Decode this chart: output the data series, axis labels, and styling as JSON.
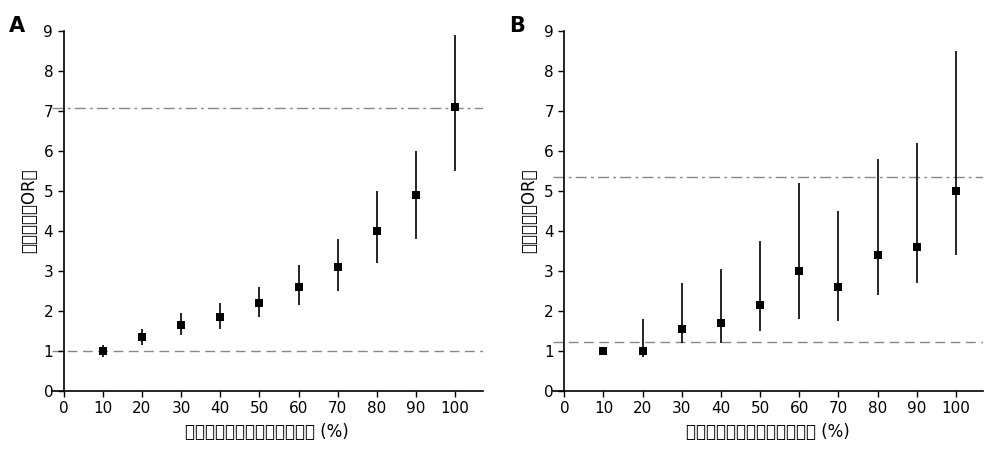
{
  "panel_A": {
    "label": "A",
    "ylabel": "发现人群的OR値",
    "xlabel": "多基因遗传风险得分百分位数 (%)",
    "x": [
      10,
      20,
      30,
      40,
      50,
      60,
      70,
      80,
      90,
      100
    ],
    "y": [
      1.0,
      1.35,
      1.65,
      1.85,
      2.2,
      2.6,
      3.1,
      4.0,
      4.9,
      7.1
    ],
    "yerr_low": [
      0.15,
      0.2,
      0.25,
      0.3,
      0.35,
      0.45,
      0.6,
      0.8,
      1.1,
      1.6
    ],
    "yerr_high": [
      0.15,
      0.2,
      0.3,
      0.35,
      0.4,
      0.55,
      0.7,
      1.0,
      1.1,
      1.8
    ],
    "hline1_y": 1.0,
    "hline2_y": 7.07,
    "ylim": [
      0,
      9
    ],
    "yticks": [
      0,
      1,
      2,
      3,
      4,
      5,
      6,
      7,
      8,
      9
    ],
    "xticks": [
      0,
      10,
      20,
      30,
      40,
      50,
      60,
      70,
      80,
      90,
      100
    ]
  },
  "panel_B": {
    "label": "B",
    "ylabel": "验证人群的OR値",
    "xlabel": "多基因遗传风险得分百分位数 (%)",
    "x": [
      10,
      20,
      30,
      40,
      50,
      60,
      70,
      80,
      90,
      100
    ],
    "y": [
      1.0,
      1.0,
      1.55,
      1.7,
      2.15,
      3.0,
      2.6,
      3.4,
      3.6,
      5.0
    ],
    "yerr_low": [
      0.0,
      0.15,
      0.35,
      0.5,
      0.65,
      1.2,
      0.85,
      1.0,
      0.9,
      1.6
    ],
    "yerr_high": [
      0.0,
      0.8,
      1.15,
      1.35,
      1.6,
      2.2,
      1.9,
      2.4,
      2.6,
      3.5
    ],
    "hline1_y": 1.22,
    "hline2_y": 5.35,
    "ylim": [
      0,
      9
    ],
    "yticks": [
      0,
      1,
      2,
      3,
      4,
      5,
      6,
      7,
      8,
      9
    ],
    "xticks": [
      0,
      10,
      20,
      30,
      40,
      50,
      60,
      70,
      80,
      90,
      100
    ]
  },
  "marker_color": "#000000",
  "line_color": "#888888",
  "tick_fontsize": 11,
  "axis_label_fontsize": 12,
  "panel_label_fontsize": 15
}
